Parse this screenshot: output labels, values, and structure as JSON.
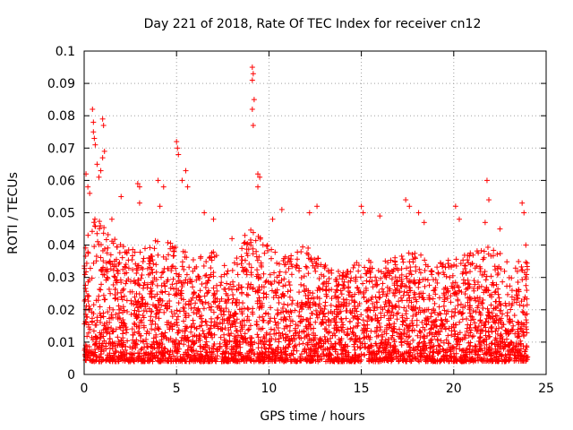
{
  "chart_data": {
    "type": "scatter",
    "title": "Day 221 of 2018, Rate Of TEC Index for receiver cn12",
    "xlabel": "GPS time / hours",
    "ylabel": "ROTI / TECUs",
    "xlim": [
      0,
      25
    ],
    "ylim": [
      0,
      0.1
    ],
    "grid": true,
    "marker": "plus",
    "series_color": "#ff0000",
    "xticks": [
      0,
      5,
      10,
      15,
      20,
      25
    ],
    "xtick_labels": [
      "0",
      "5",
      "10",
      "15",
      "20",
      "25"
    ],
    "yticks": [
      0,
      0.01,
      0.02,
      0.03,
      0.04,
      0.05,
      0.06,
      0.07,
      0.08,
      0.09,
      0.1
    ],
    "ytick_labels": [
      "0",
      "0.01",
      "0.02",
      "0.03",
      "0.04",
      "0.05",
      "0.06",
      "0.07",
      "0.08",
      "0.09",
      "0.1"
    ],
    "data_coverage_hours": [
      0,
      24
    ],
    "typical_band": [
      0.005,
      0.035
    ],
    "outliers": [
      {
        "x": 0.1,
        "y": 0.062
      },
      {
        "x": 0.2,
        "y": 0.058
      },
      {
        "x": 0.3,
        "y": 0.056
      },
      {
        "x": 0.45,
        "y": 0.082
      },
      {
        "x": 0.5,
        "y": 0.078
      },
      {
        "x": 0.5,
        "y": 0.075
      },
      {
        "x": 0.55,
        "y": 0.073
      },
      {
        "x": 0.6,
        "y": 0.071
      },
      {
        "x": 0.7,
        "y": 0.065
      },
      {
        "x": 0.8,
        "y": 0.061
      },
      {
        "x": 1.0,
        "y": 0.079
      },
      {
        "x": 1.05,
        "y": 0.077
      },
      {
        "x": 1.1,
        "y": 0.069
      },
      {
        "x": 1.0,
        "y": 0.067
      },
      {
        "x": 0.9,
        "y": 0.063
      },
      {
        "x": 1.5,
        "y": 0.048
      },
      {
        "x": 2.0,
        "y": 0.055
      },
      {
        "x": 2.9,
        "y": 0.059
      },
      {
        "x": 3.0,
        "y": 0.058
      },
      {
        "x": 3.0,
        "y": 0.053
      },
      {
        "x": 4.0,
        "y": 0.06
      },
      {
        "x": 4.3,
        "y": 0.058
      },
      {
        "x": 4.1,
        "y": 0.052
      },
      {
        "x": 5.0,
        "y": 0.072
      },
      {
        "x": 5.05,
        "y": 0.07
      },
      {
        "x": 5.1,
        "y": 0.068
      },
      {
        "x": 5.3,
        "y": 0.06
      },
      {
        "x": 5.5,
        "y": 0.063
      },
      {
        "x": 5.6,
        "y": 0.058
      },
      {
        "x": 6.5,
        "y": 0.05
      },
      {
        "x": 7.0,
        "y": 0.048
      },
      {
        "x": 8.0,
        "y": 0.042
      },
      {
        "x": 8.7,
        "y": 0.043
      },
      {
        "x": 9.1,
        "y": 0.095
      },
      {
        "x": 9.15,
        "y": 0.093
      },
      {
        "x": 9.1,
        "y": 0.091
      },
      {
        "x": 9.2,
        "y": 0.085
      },
      {
        "x": 9.1,
        "y": 0.082
      },
      {
        "x": 9.15,
        "y": 0.077
      },
      {
        "x": 9.4,
        "y": 0.062
      },
      {
        "x": 9.5,
        "y": 0.061
      },
      {
        "x": 9.4,
        "y": 0.058
      },
      {
        "x": 10.2,
        "y": 0.048
      },
      {
        "x": 10.7,
        "y": 0.051
      },
      {
        "x": 12.2,
        "y": 0.05
      },
      {
        "x": 12.6,
        "y": 0.052
      },
      {
        "x": 15.0,
        "y": 0.052
      },
      {
        "x": 15.1,
        "y": 0.05
      },
      {
        "x": 16.0,
        "y": 0.049
      },
      {
        "x": 17.4,
        "y": 0.054
      },
      {
        "x": 17.6,
        "y": 0.052
      },
      {
        "x": 18.1,
        "y": 0.05
      },
      {
        "x": 18.4,
        "y": 0.047
      },
      {
        "x": 20.1,
        "y": 0.052
      },
      {
        "x": 20.3,
        "y": 0.048
      },
      {
        "x": 21.8,
        "y": 0.06
      },
      {
        "x": 21.9,
        "y": 0.054
      },
      {
        "x": 21.7,
        "y": 0.047
      },
      {
        "x": 22.5,
        "y": 0.045
      },
      {
        "x": 23.7,
        "y": 0.053
      },
      {
        "x": 23.8,
        "y": 0.05
      },
      {
        "x": 23.9,
        "y": 0.04
      }
    ]
  }
}
